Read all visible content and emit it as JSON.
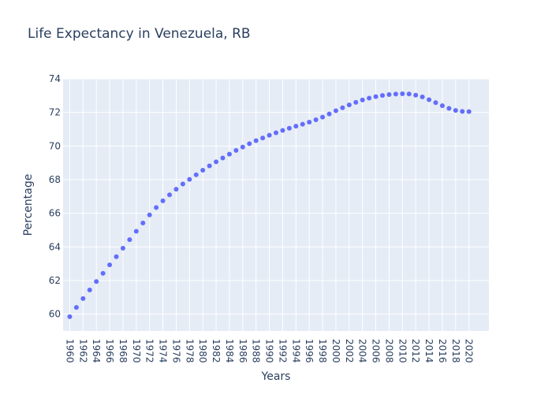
{
  "chart_data": {
    "type": "scatter",
    "title": "Life Expectancy in Venezuela, RB",
    "xlabel": "Years",
    "ylabel": "Percentage",
    "xlim": [
      1959,
      2023
    ],
    "ylim": [
      59,
      74
    ],
    "xticks": [
      1960,
      1962,
      1964,
      1966,
      1968,
      1970,
      1972,
      1974,
      1976,
      1978,
      1980,
      1982,
      1984,
      1986,
      1988,
      1990,
      1992,
      1994,
      1996,
      1998,
      2000,
      2002,
      2004,
      2006,
      2008,
      2010,
      2012,
      2014,
      2016,
      2018,
      2020
    ],
    "yticks": [
      60,
      62,
      64,
      66,
      68,
      70,
      72,
      74
    ],
    "grid": true,
    "marker_color": "#636efa",
    "plot_bg": "#e5ecf6",
    "series": [
      {
        "x": [
          1960,
          1961,
          1962,
          1963,
          1964,
          1965,
          1966,
          1967,
          1968,
          1969,
          1970,
          1971,
          1972,
          1973,
          1974,
          1975,
          1976,
          1977,
          1978,
          1979,
          1980,
          1981,
          1982,
          1983,
          1984,
          1985,
          1986,
          1987,
          1988,
          1989,
          1990,
          1991,
          1992,
          1993,
          1994,
          1995,
          1996,
          1997,
          1998,
          1999,
          2000,
          2001,
          2002,
          2003,
          2004,
          2005,
          2006,
          2007,
          2008,
          2009,
          2010,
          2011,
          2012,
          2013,
          2014,
          2015,
          2016,
          2017,
          2018,
          2019,
          2020
        ],
        "y": [
          59.85,
          60.4,
          60.93,
          61.44,
          61.94,
          62.43,
          62.93,
          63.42,
          63.92,
          64.43,
          64.93,
          65.42,
          65.9,
          66.34,
          66.74,
          67.1,
          67.43,
          67.74,
          68.02,
          68.29,
          68.56,
          68.82,
          69.06,
          69.29,
          69.52,
          69.74,
          69.94,
          70.14,
          70.32,
          70.48,
          70.64,
          70.79,
          70.93,
          71.06,
          71.18,
          71.3,
          71.42,
          71.56,
          71.72,
          71.91,
          72.1,
          72.28,
          72.45,
          72.6,
          72.74,
          72.85,
          72.94,
          73.01,
          73.06,
          73.09,
          73.11,
          73.1,
          73.03,
          72.92,
          72.76,
          72.58,
          72.4,
          72.24,
          72.12,
          72.06,
          72.05
        ]
      }
    ]
  }
}
